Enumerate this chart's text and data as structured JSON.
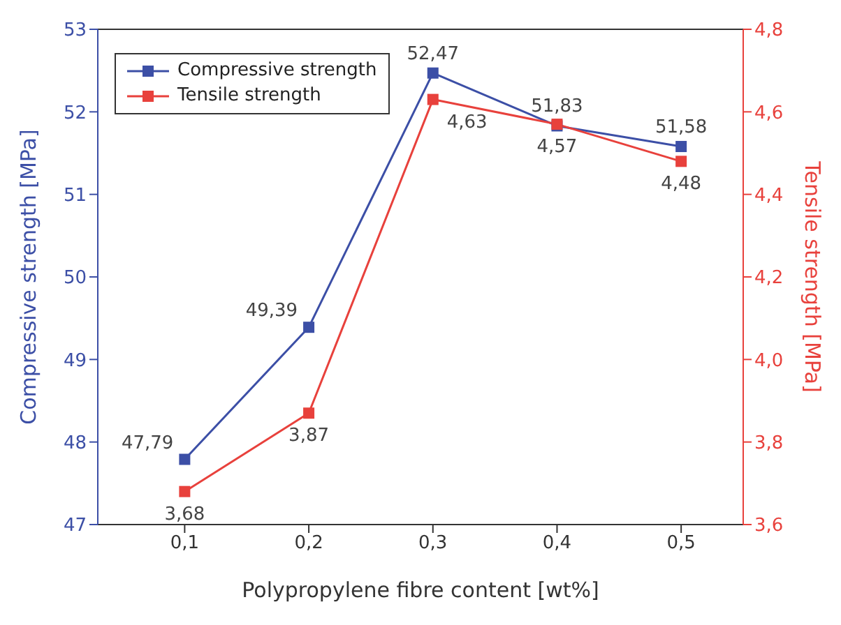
{
  "chart_data": {
    "type": "line",
    "xlabel": "Polypropylene fibre content [wt%]",
    "ylabel": "Compressive strength [MPa]",
    "y2label": "Tensile strength [MPa]",
    "x": [
      0.1,
      0.2,
      0.3,
      0.4,
      0.5
    ],
    "series": [
      {
        "name": "Compressive strength",
        "color": "#3c4fa6",
        "values": [
          47.79,
          49.39,
          52.47,
          51.83,
          51.58
        ],
        "value_labels": [
          "47,79",
          "49,39",
          "52,47",
          "51,83",
          "51,58"
        ]
      },
      {
        "name": "Tensile strength",
        "color": "#e8413c",
        "axis": "y2",
        "values": [
          3.68,
          3.87,
          4.63,
          4.57,
          4.48
        ],
        "value_labels": [
          "3,68",
          "3,87",
          "4,63",
          "4,57",
          "4,48"
        ]
      }
    ],
    "xlim": [
      0.03,
      0.55
    ],
    "xticks": [
      {
        "value": 0.1,
        "label": "0,1"
      },
      {
        "value": 0.2,
        "label": "0,2"
      },
      {
        "value": 0.3,
        "label": "0,3"
      },
      {
        "value": 0.4,
        "label": "0,4"
      },
      {
        "value": 0.5,
        "label": "0,5"
      }
    ],
    "ylim": [
      47,
      53
    ],
    "yticks": [
      47,
      48,
      49,
      50,
      51,
      52,
      53
    ],
    "y2lim": [
      3.6,
      4.8
    ],
    "y2ticks": [
      {
        "value": 3.6,
        "label": "3,6"
      },
      {
        "value": 3.8,
        "label": "3,8"
      },
      {
        "value": 4.0,
        "label": "4,0"
      },
      {
        "value": 4.2,
        "label": "4,2"
      },
      {
        "value": 4.4,
        "label": "4,4"
      },
      {
        "value": 4.6,
        "label": "4,6"
      },
      {
        "value": 4.8,
        "label": "4,8"
      }
    ],
    "marker": "square",
    "line_style": "solid",
    "legend": "top left",
    "grid": false
  }
}
